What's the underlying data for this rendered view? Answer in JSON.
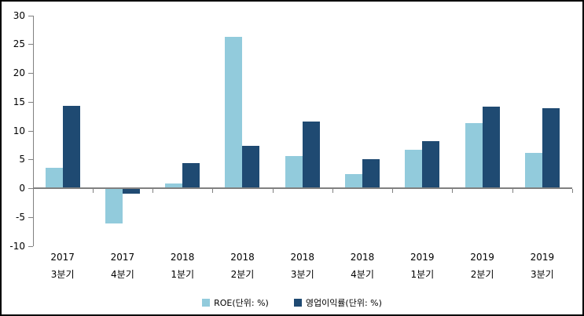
{
  "window": {
    "type": "chart-image",
    "background": "#FFFFFF",
    "border_color": "#000000"
  },
  "chart_data": {
    "type": "bar",
    "title": "",
    "categories": [
      [
        "2017",
        "3분기"
      ],
      [
        "2017",
        "4분기"
      ],
      [
        "2018",
        "1분기"
      ],
      [
        "2018",
        "2분기"
      ],
      [
        "2018",
        "3분기"
      ],
      [
        "2018",
        "4분기"
      ],
      [
        "2019",
        "1분기"
      ],
      [
        "2019",
        "2분기"
      ],
      [
        "2019",
        "3분기"
      ]
    ],
    "series": [
      {
        "name": "ROE(단위: %)",
        "color": "#92CBDC",
        "values": [
          3.6,
          -6.1,
          0.8,
          26.3,
          5.6,
          2.4,
          6.6,
          11.3,
          6.1
        ]
      },
      {
        "name": "영업이익률(단위: %)",
        "color": "#1F4A72",
        "values": [
          14.3,
          -0.9,
          4.3,
          7.4,
          11.6,
          5.0,
          8.1,
          14.1,
          13.9
        ]
      }
    ],
    "xlabel": "",
    "ylabel": "",
    "ylim": [
      -10,
      30
    ],
    "yticks": [
      30,
      25,
      20,
      15,
      10,
      5,
      0,
      -5,
      -10
    ],
    "grid": false,
    "legend_position": "bottom",
    "axis_color": "#808080",
    "text_color": "#000000"
  }
}
